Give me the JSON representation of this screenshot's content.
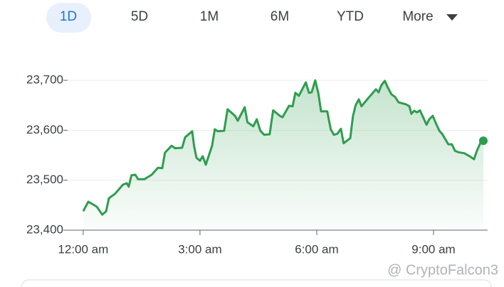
{
  "tabs": [
    "1D",
    "5D",
    "1M",
    "6M",
    "YTD",
    "More"
  ],
  "watermark": "@ CryptoFalcon3",
  "chart_data": {
    "type": "line",
    "color": "#2e9d4e",
    "grid": true,
    "x": [
      0.0,
      0.13,
      0.35,
      0.49,
      0.59,
      0.66,
      0.82,
      1.02,
      1.12,
      1.17,
      1.24,
      1.34,
      1.41,
      1.57,
      1.76,
      1.92,
      2.03,
      2.1,
      2.27,
      2.36,
      2.54,
      2.62,
      2.8,
      2.85,
      2.91,
      3.0,
      3.07,
      3.15,
      3.31,
      3.38,
      3.46,
      3.62,
      3.71,
      3.9,
      3.97,
      4.15,
      4.22,
      4.37,
      4.46,
      4.55,
      4.65,
      4.79,
      4.88,
      5.05,
      5.12,
      5.29,
      5.38,
      5.45,
      5.54,
      5.72,
      5.8,
      5.87,
      5.96,
      6.04,
      6.11,
      6.27,
      6.36,
      6.44,
      6.53,
      6.62,
      6.69,
      6.86,
      6.93,
      7.0,
      7.08,
      7.15,
      7.33,
      7.52,
      7.59,
      7.66,
      7.75,
      7.83,
      7.92,
      8.01,
      8.1,
      8.29,
      8.38,
      8.43,
      8.5,
      8.58,
      8.65,
      8.82,
      8.89,
      8.98,
      9.05,
      9.15,
      9.22,
      9.38,
      9.47,
      9.55,
      9.64,
      9.79,
      9.95,
      10.04,
      10.11,
      10.21,
      10.28
    ],
    "values": [
      23438,
      23457,
      23447,
      23431,
      23438,
      23464,
      23473,
      23491,
      23494,
      23487,
      23510,
      23511,
      23502,
      23502,
      23511,
      23525,
      23524,
      23555,
      23569,
      23564,
      23565,
      23586,
      23598,
      23568,
      23545,
      23539,
      23548,
      23531,
      23569,
      23602,
      23598,
      23599,
      23642,
      23629,
      23619,
      23646,
      23616,
      23608,
      23622,
      23599,
      23591,
      23592,
      23640,
      23629,
      23626,
      23649,
      23648,
      23675,
      23669,
      23696,
      23675,
      23676,
      23700,
      23675,
      23638,
      23638,
      23602,
      23591,
      23593,
      23603,
      23574,
      23584,
      23628,
      23650,
      23662,
      23648,
      23665,
      23682,
      23676,
      23690,
      23699,
      23685,
      23672,
      23667,
      23656,
      23652,
      23648,
      23633,
      23639,
      23636,
      23640,
      23611,
      23622,
      23629,
      23616,
      23599,
      23593,
      23572,
      23572,
      23559,
      23556,
      23554,
      23547,
      23542,
      23558,
      23576,
      23579
    ],
    "xlim": [
      -0.4,
      10.39
    ],
    "ylim": [
      23400,
      23720
    ],
    "xticks": [
      {
        "value": 0,
        "label": "12:00 am"
      },
      {
        "value": 3,
        "label": "3:00 am"
      },
      {
        "value": 6,
        "label": "6:00 am"
      },
      {
        "value": 9,
        "label": "9:00 am"
      }
    ],
    "yticks": [
      {
        "value": 23400,
        "label": "23,400"
      },
      {
        "value": 23500,
        "label": "23,500"
      },
      {
        "value": 23600,
        "label": "23,600"
      },
      {
        "value": 23700,
        "label": "23,700"
      }
    ]
  }
}
